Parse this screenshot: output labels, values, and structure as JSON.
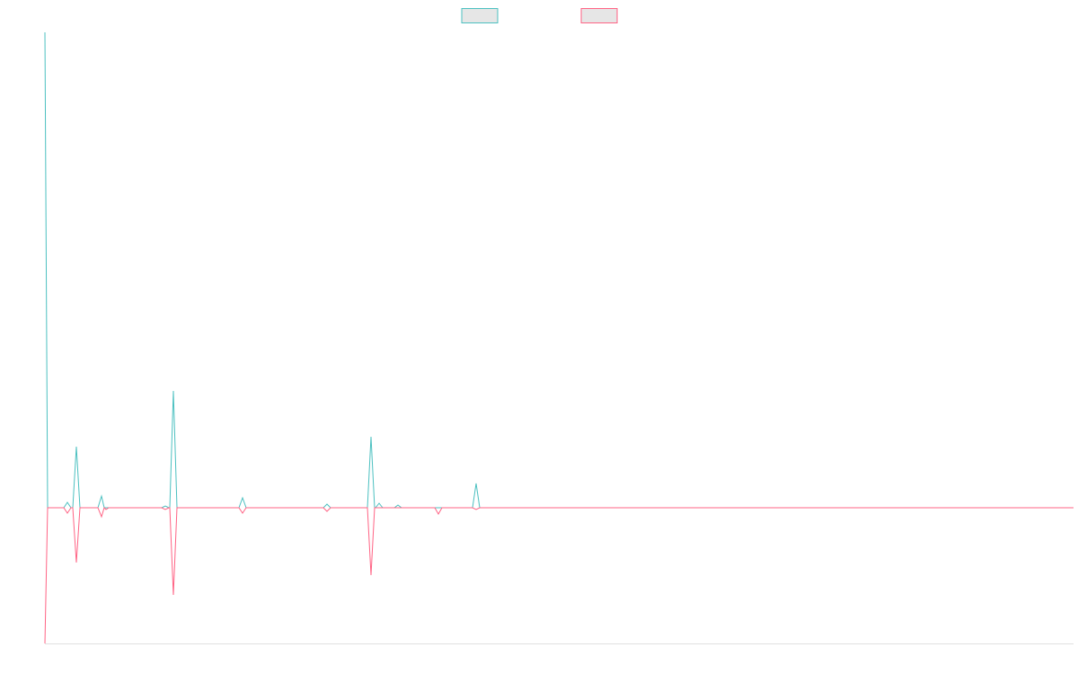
{
  "chart_data": {
    "type": "line",
    "x": [
      0,
      3,
      21,
      25,
      29,
      31,
      35,
      39,
      59,
      63,
      66,
      68,
      71,
      130,
      134,
      138,
      139,
      143,
      147,
      216,
      220,
      224,
      310,
      314,
      318,
      359,
      363,
      367,
      368,
      372,
      376,
      389,
      393,
      397,
      434,
      438,
      442,
      476,
      480,
      484,
      1145
    ],
    "series": [
      {
        "color": "#4bc0c0",
        "values": [
          529,
          0,
          0,
          6,
          0,
          0,
          68,
          0,
          0,
          13,
          0,
          0,
          0,
          0,
          2,
          0,
          0,
          130,
          0,
          0,
          11,
          0,
          0,
          4,
          0,
          0,
          79,
          0,
          0,
          5,
          0,
          0,
          3,
          0,
          0,
          0,
          0,
          0,
          27,
          0,
          0
        ]
      },
      {
        "color": "#ff6384",
        "values": [
          -151,
          0,
          0,
          -6,
          0,
          0,
          -61,
          0,
          0,
          -10,
          0,
          -2,
          0,
          0,
          -2,
          0,
          0,
          -97,
          0,
          0,
          -6,
          0,
          0,
          -4,
          0,
          0,
          -75,
          0,
          0,
          0,
          0,
          0,
          0,
          0,
          0,
          -7,
          0,
          0,
          -2,
          0,
          0
        ]
      }
    ],
    "xlim": [
      0,
      1145
    ],
    "ylim": [
      -151,
      529
    ],
    "legend": "top"
  }
}
